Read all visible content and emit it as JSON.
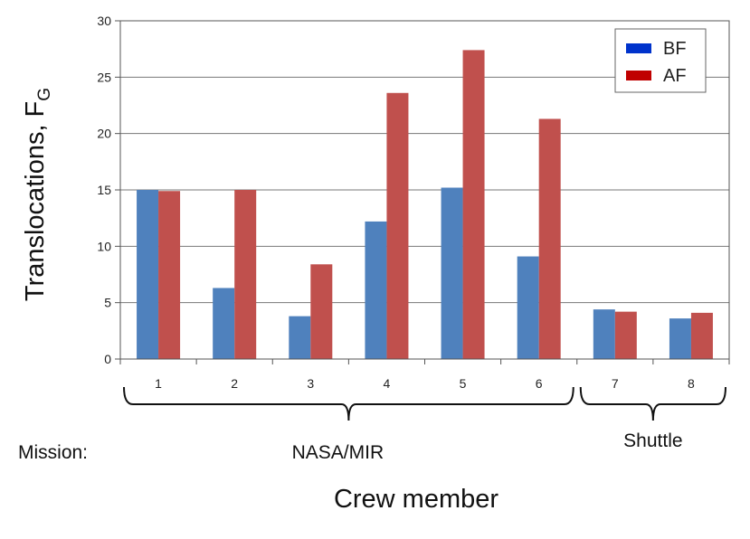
{
  "chart_data": {
    "type": "bar",
    "categories": [
      "1",
      "2",
      "3",
      "4",
      "5",
      "6",
      "7",
      "8"
    ],
    "series": [
      {
        "name": "BF",
        "color": "#4f81bd",
        "legend_color": "#0033cc",
        "values": [
          15.0,
          6.3,
          3.8,
          12.2,
          15.2,
          9.1,
          4.4,
          3.6
        ]
      },
      {
        "name": "AF",
        "color": "#c0504d",
        "legend_color": "#c00000",
        "values": [
          14.9,
          15.0,
          8.4,
          23.6,
          27.4,
          21.3,
          4.2,
          4.1
        ]
      }
    ],
    "ylabel_main": "Translocations, F",
    "ylabel_sub": "G",
    "xlabel": "Crew member",
    "ylim": [
      0,
      30
    ],
    "yticks": [
      0,
      5,
      10,
      15,
      20,
      25,
      30
    ],
    "grid": true,
    "legend_position": "top-right",
    "mission_label": "Mission:",
    "groups": [
      {
        "label": "NASA/MIR",
        "first": 0,
        "last": 5
      },
      {
        "label": "Shuttle",
        "first": 6,
        "last": 7
      }
    ]
  }
}
